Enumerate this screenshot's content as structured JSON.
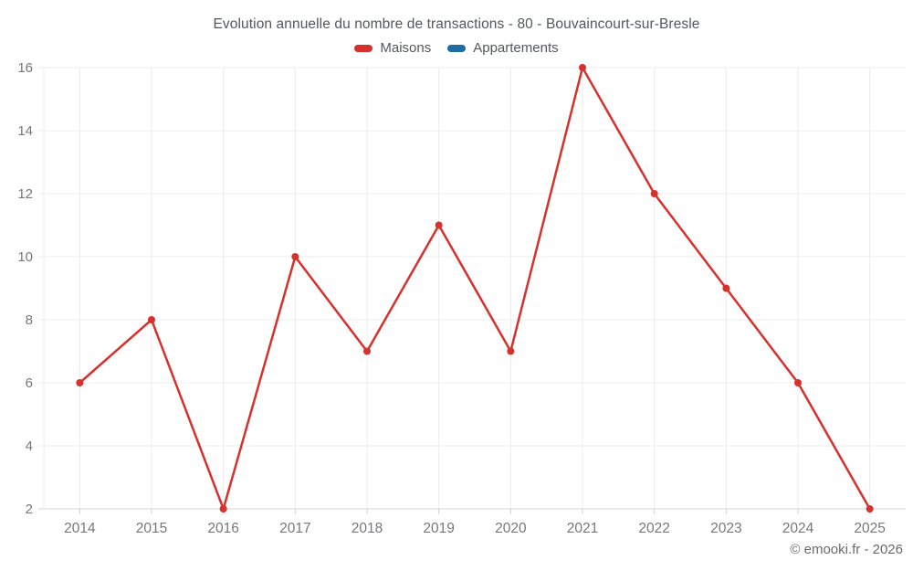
{
  "chart_data": {
    "type": "line",
    "title": "Evolution annuelle du nombre de transactions - 80 - Bouvaincourt-sur-Bresle",
    "categories": [
      "2014",
      "2015",
      "2016",
      "2017",
      "2018",
      "2019",
      "2020",
      "2021",
      "2022",
      "2023",
      "2024",
      "2025"
    ],
    "series": [
      {
        "name": "Maisons",
        "color": "#d7312e",
        "values": [
          6,
          8,
          2,
          10,
          7,
          11,
          7,
          16,
          12,
          9,
          6,
          2
        ]
      },
      {
        "name": "Appartements",
        "color": "#1c6ea4",
        "values": []
      }
    ],
    "xlabel": "",
    "ylabel": "",
    "ylim": [
      2,
      16
    ],
    "yticks": [
      2,
      4,
      6,
      8,
      10,
      12,
      14,
      16
    ],
    "grid": true,
    "legend_position": "top"
  },
  "footer": {
    "copyright": "© emooki.fr - 2026"
  },
  "colors": {
    "background": "#ffffff",
    "title_text": "#54575b",
    "tick_label": "#77787b",
    "grid_line": "#ececec",
    "axis_line": "#d4d4d4"
  }
}
